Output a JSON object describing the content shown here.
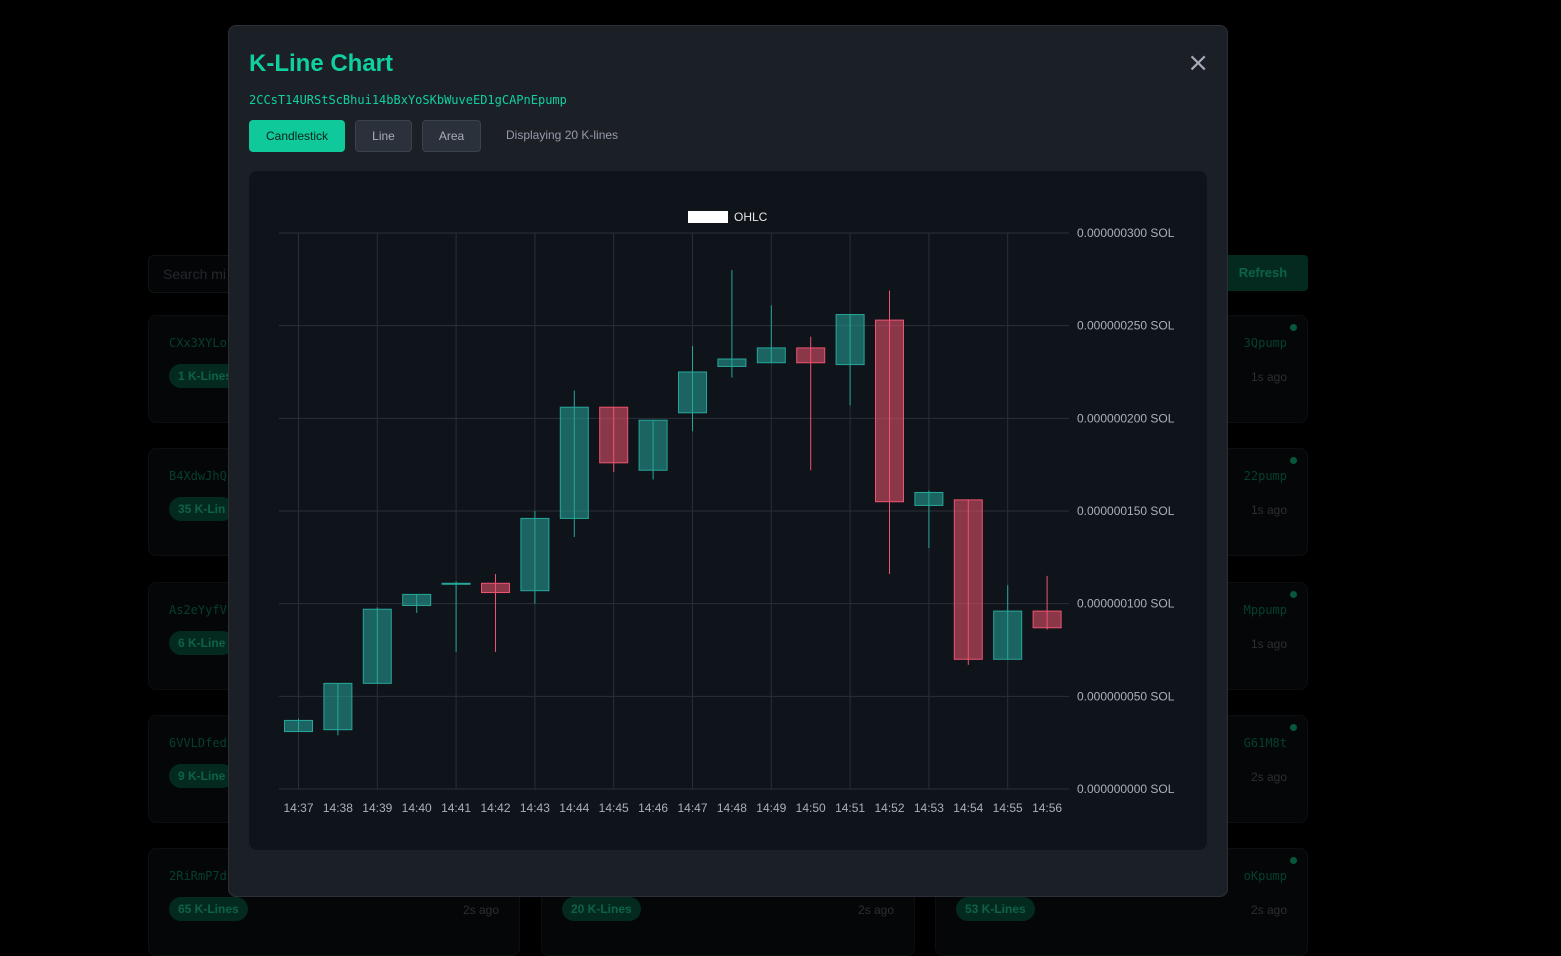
{
  "background": {
    "search_placeholder": "Search mi",
    "refresh_label": "Refresh",
    "cards": [
      {
        "addr": "CXx3XYLo",
        "badge": "1 K-Lines",
        "right_addr": "3Qpump",
        "time": "1s ago"
      },
      {
        "addr": "B4XdwJhQ",
        "badge": "35 K-Lin",
        "right_addr": "22pump",
        "time": "1s ago"
      },
      {
        "addr": "As2eYyfV",
        "badge": "6 K-Line",
        "right_addr": "Mppump",
        "time": "1s ago"
      },
      {
        "addr": "6VVLDfed",
        "badge": "9 K-Line",
        "right_addr": "G61M8t",
        "time": "2s ago"
      },
      {
        "addr": "2RiRmP7d",
        "badge": "65 K-Lines",
        "right_addr": "oKpump",
        "time": "2s ago"
      }
    ],
    "row5_mid_badge": "20 K-Lines",
    "row5_mid_time": "2s ago",
    "row5_right_badge": "53 K-Lines"
  },
  "modal": {
    "title": "K-Line Chart",
    "close_symbol": "×",
    "token_address": "2CCsT14URStScBhui14bBxYoSKbWuveED1gCAPnEpump",
    "buttons": {
      "candlestick": "Candlestick",
      "line": "Line",
      "area": "Area"
    },
    "kline_count_text": "Displaying 20 K-lines"
  },
  "colors": {
    "accent": "#10c99a",
    "up": "#26a69a",
    "down": "#ef5370",
    "grid": "#2a2f36"
  },
  "chart_data": {
    "type": "candlestick",
    "legend": "OHLC",
    "legend_position": "top-center",
    "y_unit": "SOL",
    "ylim": [
      0,
      3e-07
    ],
    "yticks": [
      "0.000000000 SOL",
      "0.000000050 SOL",
      "0.000000100 SOL",
      "0.000000150 SOL",
      "0.000000200 SOL",
      "0.000000250 SOL",
      "0.000000300 SOL"
    ],
    "grid": true,
    "categories": [
      "14:37",
      "14:38",
      "14:39",
      "14:40",
      "14:41",
      "14:42",
      "14:43",
      "14:44",
      "14:45",
      "14:46",
      "14:47",
      "14:48",
      "14:49",
      "14:50",
      "14:51",
      "14:52",
      "14:53",
      "14:54",
      "14:55",
      "14:56"
    ],
    "ohlc": [
      {
        "o": 3.1e-08,
        "h": 3.8e-08,
        "l": 3.1e-08,
        "c": 3.7e-08
      },
      {
        "o": 3.2e-08,
        "h": 5.7e-08,
        "l": 2.9e-08,
        "c": 5.7e-08
      },
      {
        "o": 5.7e-08,
        "h": 9.8e-08,
        "l": 5.7e-08,
        "c": 9.7e-08
      },
      {
        "o": 9.9e-08,
        "h": 1.05e-07,
        "l": 9.5e-08,
        "c": 1.05e-07
      },
      {
        "o": 1.11e-07,
        "h": 1.12e-07,
        "l": 7.4e-08,
        "c": 1.11e-07
      },
      {
        "o": 1.11e-07,
        "h": 1.16e-07,
        "l": 7.4e-08,
        "c": 1.06e-07
      },
      {
        "o": 1.07e-07,
        "h": 1.5e-07,
        "l": 1e-07,
        "c": 1.46e-07
      },
      {
        "o": 1.46e-07,
        "h": 2.15e-07,
        "l": 1.36e-07,
        "c": 2.06e-07
      },
      {
        "o": 2.06e-07,
        "h": 2.06e-07,
        "l": 1.71e-07,
        "c": 1.76e-07
      },
      {
        "o": 1.72e-07,
        "h": 1.99e-07,
        "l": 1.67e-07,
        "c": 1.99e-07
      },
      {
        "o": 2.03e-07,
        "h": 2.39e-07,
        "l": 1.93e-07,
        "c": 2.25e-07
      },
      {
        "o": 2.28e-07,
        "h": 2.8e-07,
        "l": 2.22e-07,
        "c": 2.32e-07
      },
      {
        "o": 2.3e-07,
        "h": 2.61e-07,
        "l": 2.3e-07,
        "c": 2.38e-07
      },
      {
        "o": 2.38e-07,
        "h": 2.44e-07,
        "l": 1.72e-07,
        "c": 2.3e-07
      },
      {
        "o": 2.29e-07,
        "h": 2.56e-07,
        "l": 2.07e-07,
        "c": 2.56e-07
      },
      {
        "o": 2.53e-07,
        "h": 2.69e-07,
        "l": 1.16e-07,
        "c": 1.55e-07
      },
      {
        "o": 1.53e-07,
        "h": 1.61e-07,
        "l": 1.3e-07,
        "c": 1.6e-07
      },
      {
        "o": 1.56e-07,
        "h": 1.56e-07,
        "l": 6.7e-08,
        "c": 7e-08
      },
      {
        "o": 7e-08,
        "h": 1.1e-07,
        "l": 7e-08,
        "c": 9.6e-08
      },
      {
        "o": 9.6e-08,
        "h": 1.15e-07,
        "l": 8.6e-08,
        "c": 8.7e-08
      }
    ]
  }
}
